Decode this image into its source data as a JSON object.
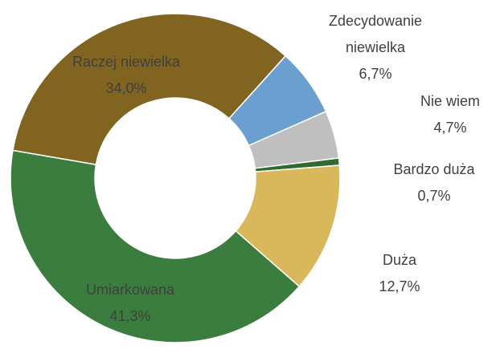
{
  "chart_data": {
    "type": "donut",
    "categories": [
      "Zdecydowanie niewielka",
      "Nie wiem",
      "Bardzo duża",
      "Duża",
      "Umiarkowana",
      "Raczej niewielka"
    ],
    "values": [
      6.7,
      4.7,
      0.7,
      12.7,
      41.3,
      34.0
    ],
    "value_labels": [
      "6,7%",
      "4,7%",
      "0,7%",
      "12,7%",
      "41,3%",
      "34,0%"
    ],
    "colors": [
      "#6a9fd0",
      "#bfbfbf",
      "#2e6b30",
      "#d8b85a",
      "#3b7d3f",
      "#806420"
    ]
  }
}
